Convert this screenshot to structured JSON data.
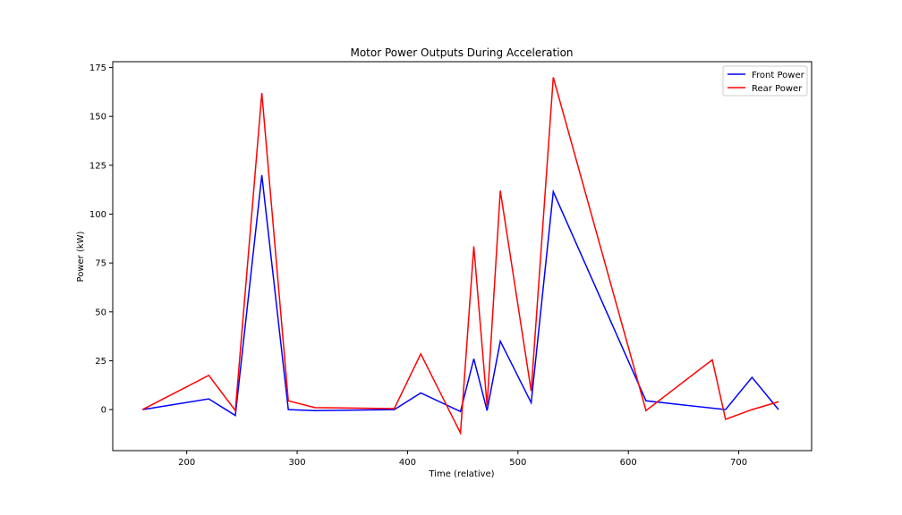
{
  "chart_data": {
    "type": "line",
    "title": "Motor Power Outputs During Acceleration",
    "xlabel": "Time (relative)",
    "ylabel": "Power (kW)",
    "xlim": [
      133,
      766
    ],
    "ylim": [
      -21,
      178
    ],
    "xticks": [
      200,
      300,
      400,
      500,
      600,
      700
    ],
    "yticks": [
      0,
      25,
      50,
      75,
      100,
      125,
      150,
      175
    ],
    "grid": false,
    "legend_position": "top-right",
    "x": [
      160,
      220,
      244,
      268,
      292,
      316,
      388,
      412,
      448,
      460,
      472,
      484,
      512,
      532,
      616,
      676,
      688,
      712,
      736
    ],
    "series": [
      {
        "name": "Front Power",
        "color": "#0000ff",
        "values": [
          0,
          5.5,
          -3,
          120,
          0,
          -0.5,
          0,
          8.5,
          -1,
          26,
          -0.5,
          35,
          3.5,
          111.5,
          4.5,
          null,
          0,
          16.5,
          0
        ]
      },
      {
        "name": "Rear Power",
        "color": "#ff0000",
        "values": [
          0,
          17.5,
          -0.5,
          162,
          4.5,
          1,
          0.5,
          28.5,
          -12,
          83.5,
          2,
          112,
          9.5,
          170,
          -0.5,
          25.5,
          -5,
          0,
          4
        ]
      }
    ]
  }
}
